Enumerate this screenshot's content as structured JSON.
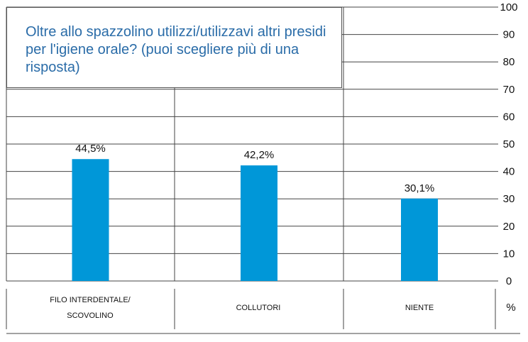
{
  "chart_data": {
    "type": "bar",
    "title": "Oltre allo spazzolino utilizzi/utilizzavi altri presidi per l'igiene orale? (puoi scegliere più di una risposta)",
    "categories": [
      "FILO INTERDENTALE/\nSCOVOLINO",
      "COLLUTORI",
      "NIENTE"
    ],
    "values": [
      44.5,
      42.2,
      30.1
    ],
    "data_labels": [
      "44,5%",
      "42,2%",
      "30,1%"
    ],
    "ylim": [
      0,
      100
    ],
    "yticks": [
      "0",
      "10",
      "20",
      "30",
      "40",
      "50",
      "60",
      "70",
      "80",
      "90",
      "100"
    ],
    "y_unit": "%",
    "grid": true,
    "legend": "none",
    "bar_color": "#0097d8"
  }
}
